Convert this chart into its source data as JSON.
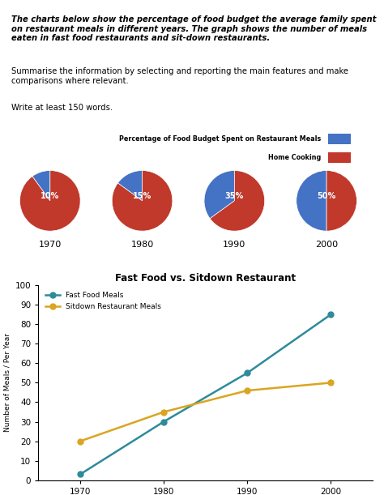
{
  "title_bold": "The charts below show the percentage of food budget the average family spent on restaurant meals in different years. The graph shows the number of meals eaten in fast food restaurants and sit-down restaurants.",
  "subtitle": "Summarise the information by selecting and reporting the main features and make comparisons where relevant.",
  "write_note": "Write at least 150 words.",
  "pie_title": "Percentage of Food Budget Spent on Restaurant Meals",
  "pie_legend_restaurant": "Percentage of Food Budget Spent on Restaurant Meals",
  "pie_legend_home": "Home Cooking",
  "pie_years": [
    1970,
    1980,
    1990,
    2000
  ],
  "pie_restaurant_pct": [
    10,
    15,
    35,
    50
  ],
  "pie_color_restaurant": "#4472C4",
  "pie_color_home": "#C0392B",
  "line_title": "Fast Food vs. Sitdown Restaurant",
  "line_years": [
    1970,
    1980,
    1990,
    2000
  ],
  "fast_food": [
    3,
    30,
    55,
    85
  ],
  "sitdown": [
    20,
    35,
    46,
    50
  ],
  "fast_food_color": "#2E8B9A",
  "sitdown_color": "#DAA520",
  "fast_food_label": "Fast Food Meals",
  "sitdown_label": "Sitdown Restaurant Meals",
  "ylabel_line": "Number of Meals / Per Year",
  "ylim_line": [
    0,
    100
  ],
  "yticks_line": [
    0,
    10,
    20,
    30,
    40,
    50,
    60,
    70,
    80,
    90,
    100
  ],
  "background_color": "#FFFFFF",
  "text_color": "#000000"
}
